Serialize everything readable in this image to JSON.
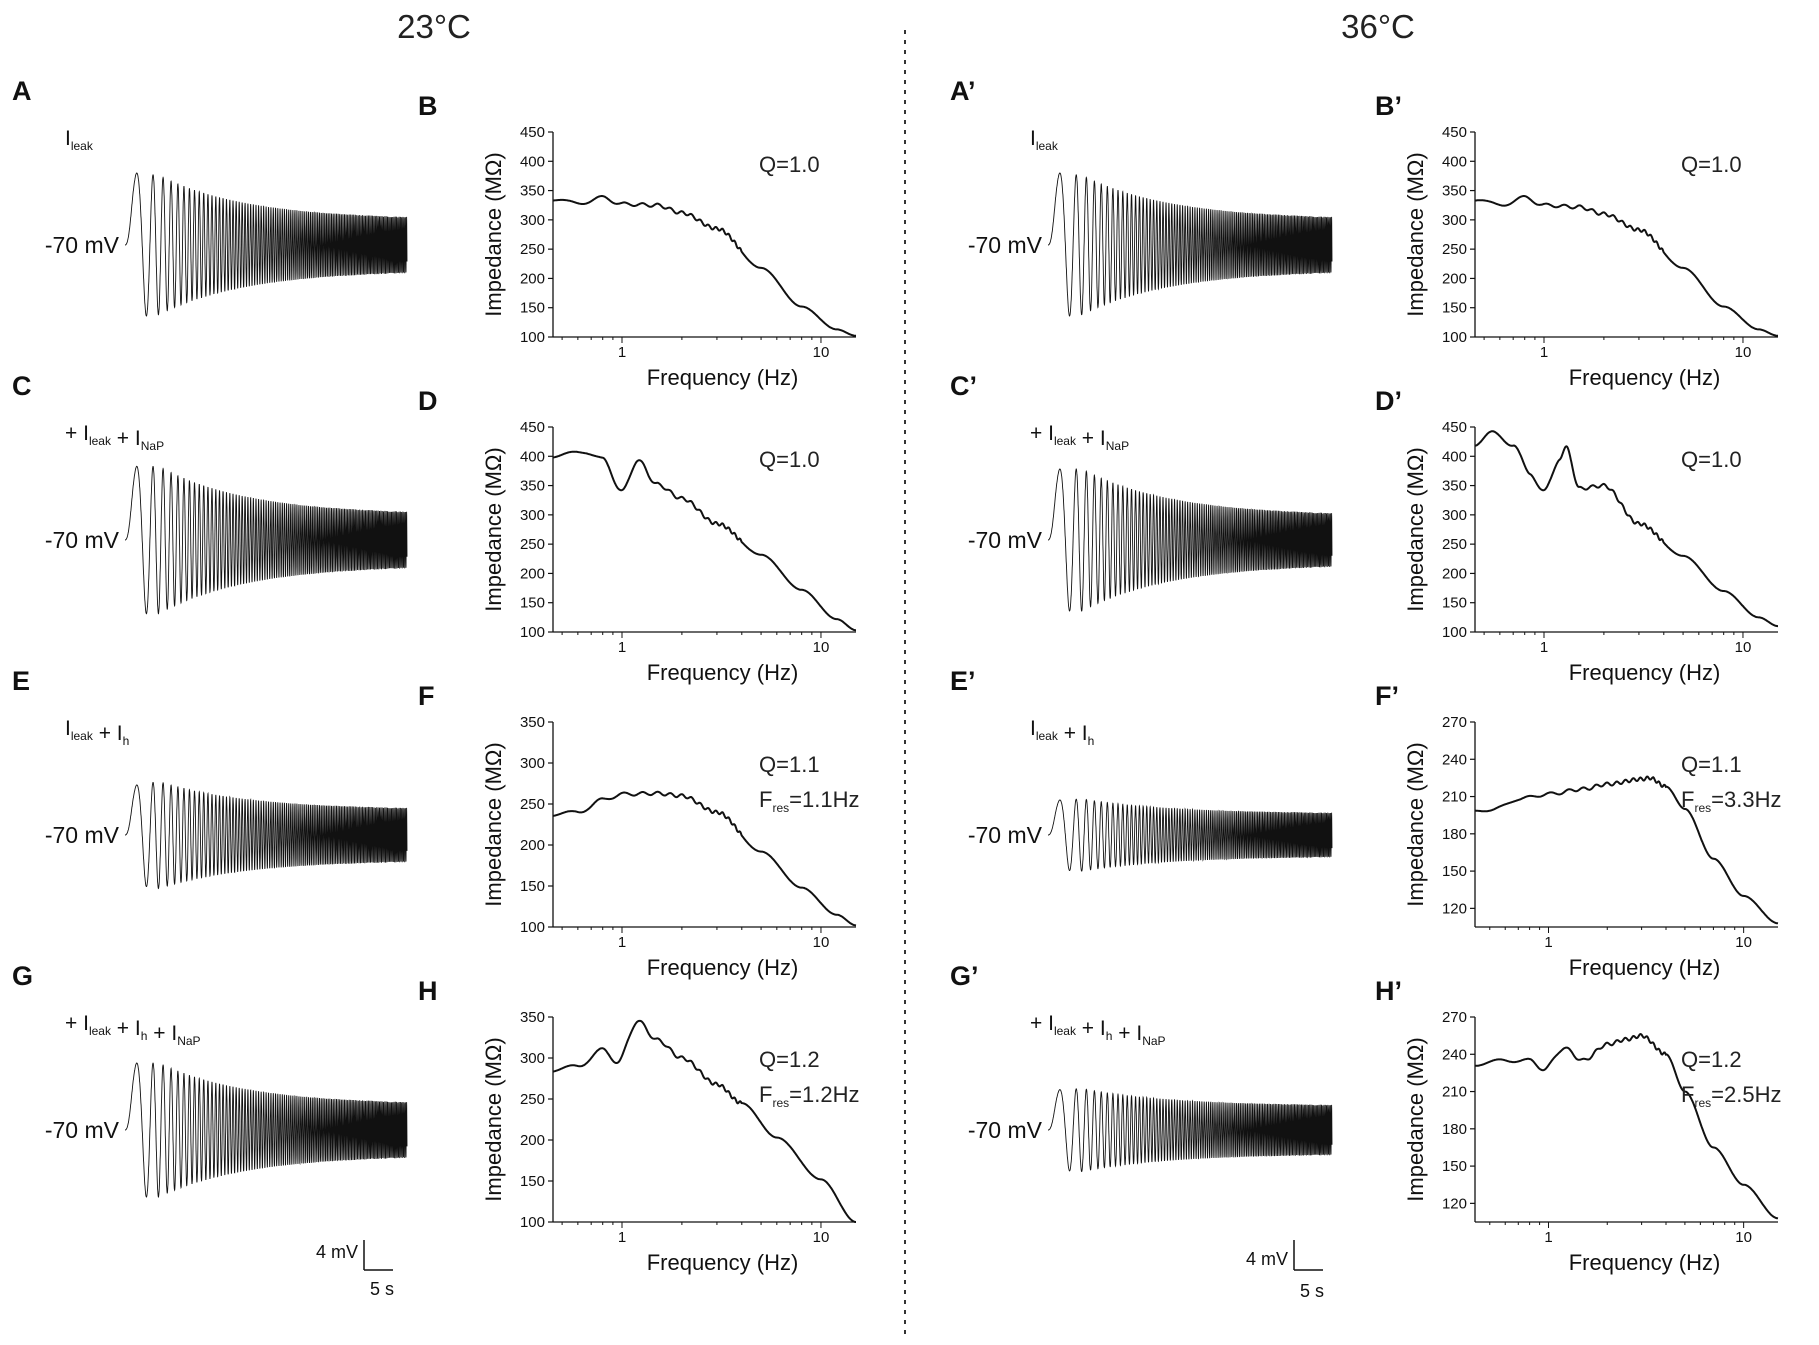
{
  "figure": {
    "temps": [
      "23°C",
      "36°C"
    ],
    "scalebars": [
      {
        "v": "4 mV",
        "t": "5 s"
      },
      {
        "v": "4 mV",
        "t": "5 s"
      }
    ],
    "colors": {
      "ink": "#111111",
      "text": "#222222",
      "divider": "#333333"
    }
  },
  "chart_data": [
    {
      "type": "line",
      "label": "A",
      "trace": {
        "kind": "voltage",
        "condition": {
          "pre": "",
          "parts": [
            {
              "t": "I",
              "sub": "leak"
            }
          ]
        },
        "vlabel": "-70 mV",
        "envelope": {
          "first_peak": 5.4,
          "max": 5.2,
          "end": 1.9
        },
        "xlabel": "5 s",
        "ylabel": "4 mV"
      }
    },
    {
      "type": "line",
      "label": "B",
      "title": "Q=1.0",
      "annotations": [
        "Q=1.0"
      ],
      "xlabel": "Frequency (Hz)",
      "ylabel": "Impedance (MΩ)",
      "xscale": "log",
      "xlim": [
        0.45,
        15
      ],
      "xticks": [
        1,
        10
      ],
      "ylim": [
        100,
        450
      ],
      "yticks": [
        100,
        150,
        200,
        250,
        300,
        350,
        400,
        450
      ],
      "series": [
        {
          "name": "impedance",
          "x": [
            0.45,
            0.6,
            0.8,
            1,
            1.5,
            2,
            3,
            5,
            8,
            12,
            15
          ],
          "y": [
            335,
            328,
            338,
            327,
            325,
            312,
            285,
            218,
            152,
            113,
            102
          ]
        }
      ]
    },
    {
      "type": "line",
      "label": "C",
      "trace": {
        "kind": "voltage",
        "condition": {
          "pre": "+ ",
          "parts": [
            {
              "t": "I",
              "sub": "leak"
            },
            {
              "t": " + I",
              "sub": "NaP"
            }
          ]
        },
        "vlabel": "-70 mV",
        "envelope": {
          "first_peak": 5.5,
          "max": 5.5,
          "end": 1.9
        },
        "xlabel": "",
        "ylabel": ""
      }
    },
    {
      "type": "line",
      "label": "D",
      "title": "Q=1.0",
      "annotations": [
        "Q=1.0"
      ],
      "xlabel": "Frequency (Hz)",
      "ylabel": "Impedance (MΩ)",
      "xscale": "log",
      "xlim": [
        0.45,
        15
      ],
      "xticks": [
        1,
        10
      ],
      "ylim": [
        100,
        450
      ],
      "yticks": [
        100,
        150,
        200,
        250,
        300,
        350,
        400,
        450
      ],
      "series": [
        {
          "name": "impedance",
          "x": [
            0.45,
            0.65,
            0.8,
            1,
            1.2,
            1.5,
            2,
            3,
            5,
            8,
            12,
            15
          ],
          "y": [
            400,
            408,
            395,
            340,
            393,
            352,
            328,
            285,
            232,
            172,
            122,
            103
          ]
        }
      ]
    },
    {
      "type": "line",
      "label": "E",
      "trace": {
        "kind": "voltage",
        "condition": {
          "pre": "",
          "parts": [
            {
              "t": "I",
              "sub": "leak"
            },
            {
              "t": " + I",
              "sub": "h"
            }
          ]
        },
        "vlabel": "-70 mV",
        "envelope": {
          "first_peak": 3.7,
          "max": 4.0,
          "end": 1.9
        },
        "xlabel": "",
        "ylabel": ""
      }
    },
    {
      "type": "line",
      "label": "F",
      "title": "Q=1.1",
      "annotations": [
        "Q=1.1",
        {
          "t": "F",
          "sub": "res",
          "rest": "=1.1Hz"
        }
      ],
      "xlabel": "Frequency (Hz)",
      "ylabel": "Impedance (MΩ)",
      "xscale": "log",
      "xlim": [
        0.45,
        15
      ],
      "xticks": [
        1,
        10
      ],
      "ylim": [
        100,
        350
      ],
      "yticks": [
        100,
        150,
        200,
        250,
        300,
        350
      ],
      "series": [
        {
          "name": "impedance",
          "x": [
            0.45,
            0.6,
            0.8,
            1,
            1.5,
            2,
            3,
            5,
            8,
            12,
            15
          ],
          "y": [
            237,
            240,
            255,
            262,
            263,
            260,
            240,
            192,
            148,
            115,
            102
          ]
        }
      ]
    },
    {
      "type": "line",
      "label": "G",
      "trace": {
        "kind": "voltage",
        "condition": {
          "pre": "+ ",
          "parts": [
            {
              "t": "I",
              "sub": "leak"
            },
            {
              "t": " + I",
              "sub": "h"
            },
            {
              "t": " + I",
              "sub": "NaP"
            }
          ]
        },
        "vlabel": "-70 mV",
        "envelope": {
          "first_peak": 5.0,
          "max": 5.0,
          "end": 1.9
        },
        "xlabel": "5 s",
        "ylabel": "4 mV"
      }
    },
    {
      "type": "line",
      "label": "H",
      "title": "Q=1.2",
      "annotations": [
        "Q=1.2",
        {
          "t": "F",
          "sub": "res",
          "rest": "=1.2Hz"
        }
      ],
      "xlabel": "Frequency (Hz)",
      "ylabel": "Impedance (MΩ)",
      "xscale": "log",
      "xlim": [
        0.45,
        15
      ],
      "xticks": [
        1,
        10
      ],
      "ylim": [
        100,
        350
      ],
      "yticks": [
        100,
        150,
        200,
        250,
        300,
        350
      ],
      "series": [
        {
          "name": "impedance",
          "x": [
            0.45,
            0.6,
            0.8,
            0.95,
            1.2,
            1.5,
            2,
            3,
            4,
            6,
            10,
            15
          ],
          "y": [
            285,
            290,
            310,
            295,
            345,
            322,
            300,
            268,
            245,
            203,
            152,
            100
          ]
        }
      ]
    },
    {
      "type": "line",
      "label": "A’",
      "trace": {
        "kind": "voltage",
        "condition": {
          "pre": "",
          "parts": [
            {
              "t": "I",
              "sub": "leak"
            }
          ]
        },
        "vlabel": "-70 mV",
        "envelope": {
          "first_peak": 5.4,
          "max": 5.2,
          "end": 1.9
        },
        "xlabel": "",
        "ylabel": ""
      }
    },
    {
      "type": "line",
      "label": "B’",
      "title": "Q=1.0",
      "annotations": [
        "Q=1.0"
      ],
      "xlabel": "Frequency (Hz)",
      "ylabel": "Impedance (MΩ)",
      "xscale": "log",
      "xlim": [
        0.45,
        15
      ],
      "xticks": [
        1,
        10
      ],
      "ylim": [
        100,
        450
      ],
      "yticks": [
        100,
        150,
        200,
        250,
        300,
        350,
        400,
        450
      ],
      "series": [
        {
          "name": "impedance",
          "x": [
            0.45,
            0.6,
            0.8,
            1,
            1.5,
            2,
            3,
            5,
            8,
            12,
            15
          ],
          "y": [
            335,
            325,
            338,
            325,
            322,
            310,
            283,
            218,
            152,
            113,
            102
          ]
        }
      ]
    },
    {
      "type": "line",
      "label": "C’",
      "trace": {
        "kind": "voltage",
        "condition": {
          "pre": "+ ",
          "parts": [
            {
              "t": "I",
              "sub": "leak"
            },
            {
              "t": " + I",
              "sub": "NaP"
            }
          ]
        },
        "vlabel": "-70 mV",
        "envelope": {
          "first_peak": 5.3,
          "max": 5.3,
          "end": 1.8
        },
        "xlabel": "",
        "ylabel": ""
      }
    },
    {
      "type": "line",
      "label": "D’",
      "title": "Q=1.0",
      "annotations": [
        "Q=1.0"
      ],
      "xlabel": "Frequency (Hz)",
      "ylabel": "Impedance (MΩ)",
      "xscale": "log",
      "xlim": [
        0.45,
        15
      ],
      "xticks": [
        1,
        10
      ],
      "ylim": [
        100,
        450
      ],
      "yticks": [
        100,
        150,
        200,
        250,
        300,
        350,
        400,
        450
      ],
      "series": [
        {
          "name": "impedance",
          "x": [
            0.45,
            0.55,
            0.7,
            0.85,
            1,
            1.2,
            1.3,
            1.5,
            2,
            3,
            5,
            8,
            12,
            15
          ],
          "y": [
            420,
            440,
            420,
            370,
            340,
            395,
            415,
            345,
            350,
            285,
            230,
            170,
            125,
            110
          ]
        }
      ]
    },
    {
      "type": "line",
      "label": "E’",
      "trace": {
        "kind": "voltage",
        "condition": {
          "pre": "",
          "parts": [
            {
              "t": "I",
              "sub": "leak"
            },
            {
              "t": " + I",
              "sub": "h"
            }
          ]
        },
        "vlabel": "-70 mV",
        "envelope": {
          "first_peak": 2.6,
          "max": 2.7,
          "end": 1.6
        },
        "xlabel": "",
        "ylabel": ""
      }
    },
    {
      "type": "line",
      "label": "F’",
      "title": "Q=1.1",
      "annotations": [
        "Q=1.1",
        {
          "t": "F",
          "sub": "res",
          "rest": "=3.3Hz"
        }
      ],
      "xlabel": "Frequency (Hz)",
      "ylabel": "Impedance (MΩ)",
      "xscale": "log",
      "xlim": [
        0.42,
        15
      ],
      "xticks": [
        1,
        10
      ],
      "ylim": [
        105,
        270
      ],
      "yticks": [
        120,
        150,
        180,
        210,
        240,
        270
      ],
      "series": [
        {
          "name": "impedance",
          "x": [
            0.42,
            0.5,
            0.7,
            1,
            1.5,
            2,
            3,
            3.3,
            4,
            5,
            7,
            10,
            15
          ],
          "y": [
            200,
            198,
            208,
            212,
            216,
            220,
            224,
            225,
            218,
            200,
            160,
            130,
            108
          ]
        }
      ]
    },
    {
      "type": "line",
      "label": "G’",
      "trace": {
        "kind": "voltage",
        "condition": {
          "pre": "+ ",
          "parts": [
            {
              "t": "I",
              "sub": "leak"
            },
            {
              "t": " + I",
              "sub": "h"
            },
            {
              "t": " + I",
              "sub": "NaP"
            }
          ]
        },
        "vlabel": "-70 mV",
        "envelope": {
          "first_peak": 3.0,
          "max": 3.1,
          "end": 1.8
        },
        "xlabel": "5 s",
        "ylabel": "4 mV"
      }
    },
    {
      "type": "line",
      "label": "H’",
      "title": "Q=1.2",
      "annotations": [
        "Q=1.2",
        {
          "t": "F",
          "sub": "res",
          "rest": "=2.5Hz"
        }
      ],
      "xlabel": "Frequency (Hz)",
      "ylabel": "Impedance (MΩ)",
      "xscale": "log",
      "xlim": [
        0.42,
        15
      ],
      "xticks": [
        1,
        10
      ],
      "ylim": [
        105,
        270
      ],
      "yticks": [
        120,
        150,
        180,
        210,
        240,
        270
      ],
      "series": [
        {
          "name": "impedance",
          "x": [
            0.42,
            0.6,
            0.8,
            0.95,
            1.2,
            1.5,
            2,
            2.5,
            3,
            4,
            5,
            7,
            10,
            15
          ],
          "y": [
            232,
            235,
            235,
            228,
            245,
            235,
            248,
            252,
            255,
            240,
            210,
            165,
            135,
            108
          ]
        }
      ]
    }
  ]
}
